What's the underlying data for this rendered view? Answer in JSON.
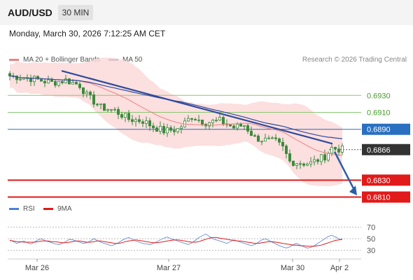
{
  "header": {
    "symbol": "AUD/USD",
    "timeframe": "30 MIN",
    "datetime": "Monday, March 30, 2026 7:12:25 AM CET"
  },
  "legend": {
    "ma20": "MA 20 + Bollinger Bands",
    "ma50": "MA 50",
    "credit": "Research © 2026 Trading Central",
    "rsi": "RSI",
    "rsi_ma": "9MA"
  },
  "colors": {
    "ma20": "#ef8080",
    "ma50": "#2e4a9c",
    "bands": "#fbd9d9",
    "candle": "#3d8a3d",
    "resistance": "#88c870",
    "current": "#2a6fc0",
    "support": "#e11a1a",
    "last_price": "#333333",
    "rsi": "#4f7fd6",
    "rsi_ma": "#e11a1a"
  },
  "chart_data": [
    {
      "type": "line",
      "subtype": "candlestick",
      "ylim": [
        0.6803,
        0.696
      ],
      "x_labels": [
        "Mar 26",
        "Mar 27",
        "Mar 30",
        "Apr 2"
      ],
      "price_levels": [
        {
          "value": 0.693,
          "label": "0.6930",
          "kind": "resistance"
        },
        {
          "value": 0.691,
          "label": "0.6910",
          "kind": "resistance"
        },
        {
          "value": 0.689,
          "label": "0.6890",
          "kind": "current"
        },
        {
          "value": 0.6866,
          "label": "0.6866",
          "kind": "last"
        },
        {
          "value": 0.683,
          "label": "0.6830",
          "kind": "support"
        },
        {
          "value": 0.681,
          "label": "0.6810",
          "kind": "support"
        }
      ],
      "trendline": {
        "from": 0.6959,
        "to": 0.6873
      },
      "forecast_arrow": {
        "from": 0.6866,
        "to": 0.6812
      },
      "grid": false
    },
    {
      "type": "line",
      "title": "RSI",
      "ylim": [
        20,
        80
      ],
      "y_ticks": [
        70,
        50,
        30
      ],
      "series": [
        {
          "name": "RSI",
          "values": [
            48,
            45,
            42,
            44,
            46,
            43,
            41,
            44,
            48,
            50,
            47,
            45,
            43,
            41,
            40,
            42,
            45,
            49,
            48,
            46,
            44,
            42,
            43,
            46,
            50,
            47,
            44,
            42,
            40,
            38,
            40,
            43,
            47,
            50,
            52,
            49,
            46,
            44,
            42,
            41,
            40,
            42,
            45,
            48,
            51,
            53,
            50,
            48,
            46,
            44,
            42,
            40,
            43,
            47,
            52,
            55,
            58,
            54,
            50,
            48,
            46,
            44,
            42,
            45,
            48,
            46,
            44,
            42,
            40,
            38,
            40,
            44,
            48,
            50,
            47,
            44,
            41,
            38,
            36,
            34,
            36,
            40,
            42,
            39,
            36,
            34,
            35,
            38,
            42,
            46,
            50,
            54,
            56,
            53,
            50,
            48
          ]
        },
        {
          "name": "9MA",
          "values": [
            47,
            46,
            45,
            45,
            44,
            44,
            44,
            44,
            45,
            46,
            46,
            46,
            45,
            45,
            44,
            43,
            43,
            44,
            45,
            46,
            46,
            45,
            44,
            44,
            45,
            46,
            46,
            45,
            44,
            43,
            42,
            42,
            43,
            45,
            46,
            47,
            48,
            47,
            46,
            45,
            44,
            43,
            43,
            44,
            45,
            46,
            47,
            48,
            48,
            47,
            46,
            45,
            44,
            44,
            45,
            47,
            49,
            51,
            52,
            52,
            51,
            50,
            49,
            48,
            47,
            46,
            46,
            45,
            44,
            43,
            42,
            42,
            43,
            44,
            45,
            45,
            44,
            43,
            42,
            41,
            40,
            39,
            39,
            38,
            38,
            37,
            37,
            37,
            38,
            39,
            41,
            43,
            45,
            47,
            48,
            49
          ]
        }
      ]
    }
  ]
}
